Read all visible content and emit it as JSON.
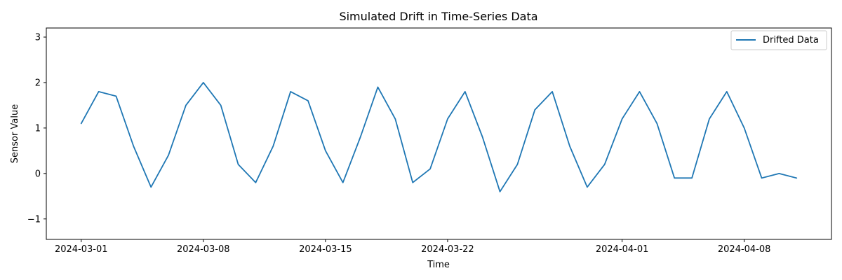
{
  "chart_data": {
    "type": "line",
    "title": "Simulated Drift in Time-Series Data",
    "xlabel": "Time",
    "ylabel": "Sensor Value",
    "x_start": "2024-03-01",
    "x_end": "2024-04-11",
    "xlim": [
      "2024-02-28",
      "2024-04-13"
    ],
    "ylim": [
      -1.45,
      3.2
    ],
    "x_ticks": [
      "2024-03-01",
      "2024-03-08",
      "2024-03-15",
      "2024-03-22",
      "2024-04-01",
      "2024-04-08"
    ],
    "y_ticks": [
      -1,
      0,
      1,
      2,
      3
    ],
    "y_tick_labels": [
      "−1",
      "0",
      "1",
      "2",
      "3"
    ],
    "grid": false,
    "legend_position": "top-right",
    "series": [
      {
        "name": "Drifted Data",
        "color": "#1f77b4",
        "x": [
          "2024-03-01",
          "2024-03-02",
          "2024-03-03",
          "2024-03-04",
          "2024-03-05",
          "2024-03-06",
          "2024-03-07",
          "2024-03-08",
          "2024-03-09",
          "2024-03-10",
          "2024-03-11",
          "2024-03-12",
          "2024-03-13",
          "2024-03-14",
          "2024-03-15",
          "2024-03-16",
          "2024-03-17",
          "2024-03-18",
          "2024-03-19",
          "2024-03-20",
          "2024-03-21",
          "2024-03-22",
          "2024-03-23",
          "2024-03-24",
          "2024-03-25",
          "2024-03-26",
          "2024-03-27",
          "2024-03-28",
          "2024-03-29",
          "2024-03-30",
          "2024-03-31",
          "2024-04-01",
          "2024-04-02",
          "2024-04-03",
          "2024-04-04",
          "2024-04-05",
          "2024-04-06",
          "2024-04-07",
          "2024-04-08",
          "2024-04-09",
          "2024-04-10",
          "2024-04-11"
        ],
        "values": [
          1.1,
          1.8,
          1.7,
          0.6,
          -0.3,
          0.4,
          1.5,
          2.0,
          1.5,
          0.2,
          -0.2,
          0.6,
          1.8,
          1.6,
          0.5,
          -0.2,
          0.8,
          1.9,
          1.2,
          -0.2,
          0.1,
          1.2,
          1.8,
          0.8,
          -0.4,
          0.2,
          1.4,
          1.8,
          0.6,
          -0.3,
          0.2,
          1.2,
          1.8,
          1.1,
          -0.1,
          -0.1,
          1.2,
          1.8,
          1.0,
          -0.1,
          0.0,
          -0.1
        ]
      }
    ]
  }
}
